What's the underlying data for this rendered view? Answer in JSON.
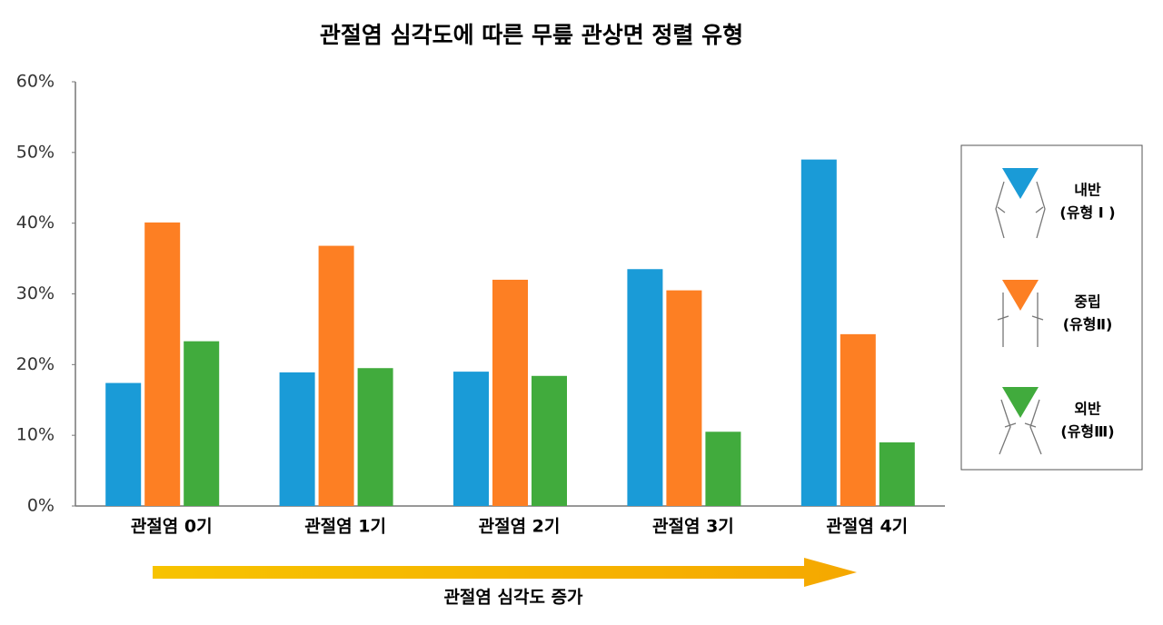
{
  "chart_data": {
    "type": "bar",
    "title": "관절염 심각도에 따른 무릎 관상면 정렬 유형",
    "categories": [
      "관절염 0기",
      "관절염 1기",
      "관절염 2기",
      "관절염 3기",
      "관절염 4기"
    ],
    "series": [
      {
        "name": "내반",
        "legend_note": "(유형 I )",
        "color": "#1a9bd7",
        "values": [
          17.4,
          18.9,
          19.0,
          33.5,
          49.0
        ]
      },
      {
        "name": "중립",
        "legend_note": "(유형Ⅱ)",
        "color": "#fd7f23",
        "values": [
          40.1,
          36.8,
          32.0,
          30.5,
          24.3
        ]
      },
      {
        "name": "외반",
        "legend_note": "(유형Ⅲ)",
        "color": "#41ab3d",
        "values": [
          23.3,
          19.5,
          18.4,
          10.5,
          9.0
        ]
      }
    ],
    "ylim": [
      0,
      60
    ],
    "yticks": [
      {
        "value": 0,
        "label": "0%"
      },
      {
        "value": 10,
        "label": "10%"
      },
      {
        "value": 20,
        "label": "20%"
      },
      {
        "value": 30,
        "label": "30%"
      },
      {
        "value": 40,
        "label": "40%"
      },
      {
        "value": 50,
        "label": "50%"
      },
      {
        "value": 60,
        "label": "60%"
      }
    ],
    "grid": false,
    "annotation": "관절염 심각도 증가"
  }
}
